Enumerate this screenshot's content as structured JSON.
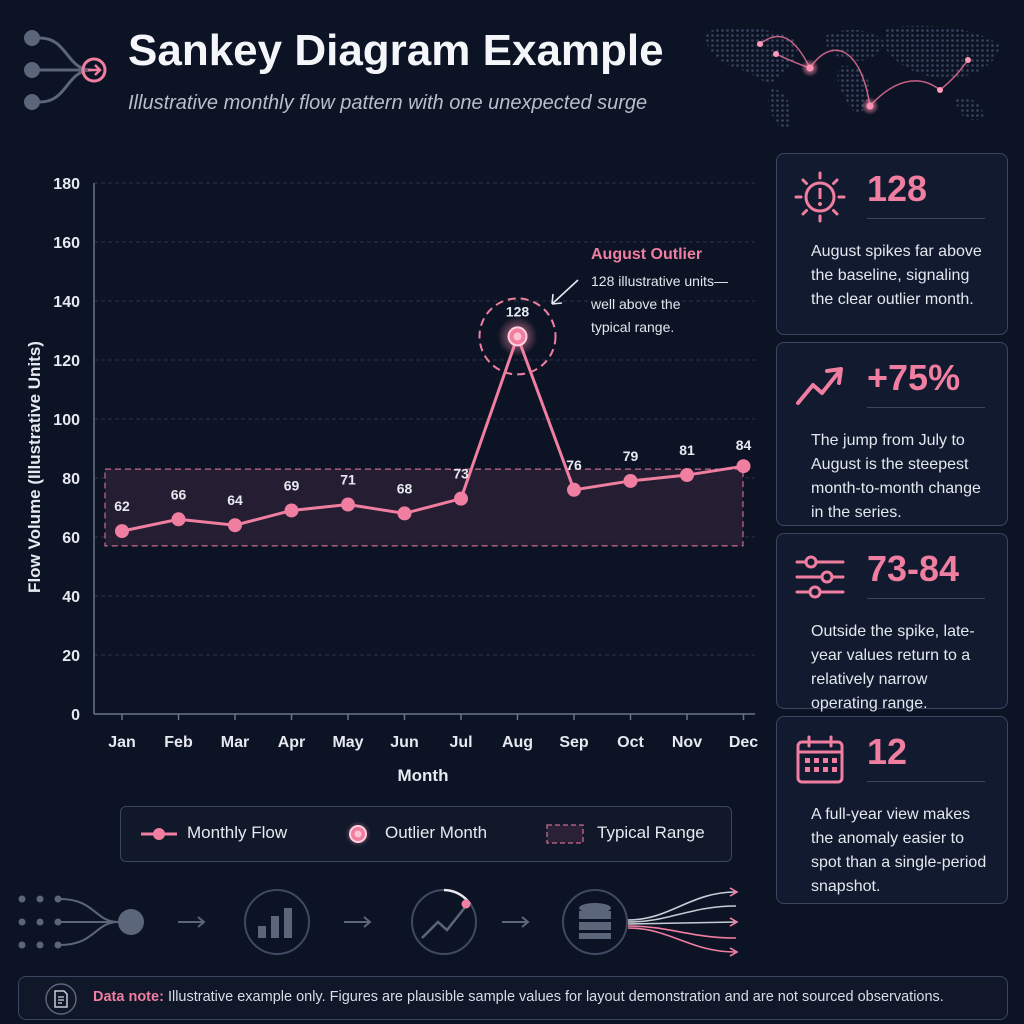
{
  "header": {
    "title": "Sankey Diagram Example",
    "subtitle": "Illustrative monthly flow pattern with one unexpected surge"
  },
  "chart_data": {
    "type": "line",
    "title": "Sankey Diagram Example",
    "subtitle": "Illustrative monthly flow pattern with one unexpected surge",
    "xlabel": "Month",
    "ylabel": "Flow Volume (Illustrative Units)",
    "categories": [
      "Jan",
      "Feb",
      "Mar",
      "Apr",
      "May",
      "Jun",
      "Jul",
      "Aug",
      "Sep",
      "Oct",
      "Nov",
      "Dec"
    ],
    "series": [
      {
        "name": "Monthly Flow",
        "values": [
          62,
          66,
          64,
          69,
          71,
          68,
          73,
          128,
          76,
          79,
          81,
          84
        ]
      }
    ],
    "data_labels": [
      "62",
      "66",
      "64",
      "69",
      "71",
      "68",
      "73",
      "128",
      "76",
      "79",
      "81",
      "84"
    ],
    "ylim": [
      0,
      180
    ],
    "yticks": [
      0,
      20,
      40,
      60,
      80,
      100,
      120,
      140,
      160,
      180
    ],
    "ytick_labels": [
      "0",
      "20",
      "40",
      "60",
      "80",
      "100",
      "120",
      "140",
      "160",
      "180"
    ],
    "grid": true,
    "typical_range": [
      57,
      83
    ],
    "outlier": {
      "category": "Aug",
      "value": 128
    },
    "annotation": {
      "title": "August Outlier",
      "lines": [
        "128 illustrative units—",
        "well above the",
        "typical range."
      ]
    },
    "legend": {
      "placement": "bottom",
      "entries": [
        "Monthly Flow",
        "Outlier Month",
        "Typical Range"
      ]
    }
  },
  "stats": [
    {
      "icon": "alert-sun-icon",
      "value": "128",
      "text": "August spikes far above the baseline, signaling the clear outlier month."
    },
    {
      "icon": "trend-up-arrow-icon",
      "value": "+75%",
      "text": "The jump from July to August is the steepest month-to-month change in the series."
    },
    {
      "icon": "sliders-icon",
      "value": "73-84",
      "text": "Outside the spike, late-year values return to a relatively narrow operating range."
    },
    {
      "icon": "calendar-icon",
      "value": "12",
      "text": "A full-year view makes the anomaly easier to spot than a single-period snapshot."
    }
  ],
  "note": {
    "label": "Data note:",
    "text": "Illustrative example only. Figures are plausible sample values for layout demonstration and are not sourced observations."
  },
  "colors": {
    "background": "#0b1324",
    "accent": "#f07ea0",
    "grid": "#2a3448",
    "range_fill": "#2a2136",
    "panel_border": "#3a4560"
  }
}
